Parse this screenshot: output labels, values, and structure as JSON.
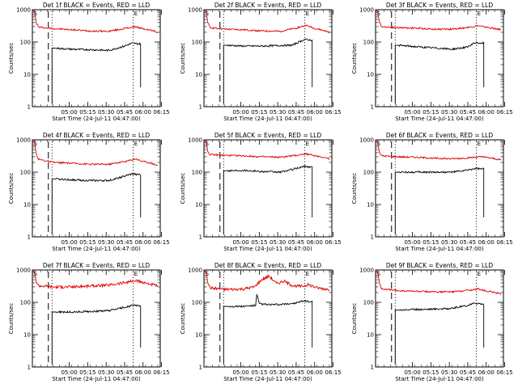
{
  "figure": {
    "x_axis_title": "Start Time (24-Jul-11 04:47:00)",
    "y_axis_title": "Counts/sec",
    "panel_mark_start": "S",
    "panel_mark_end": "E"
  },
  "chart_data": {
    "type": "line",
    "scale_y": "log",
    "ylim": [
      1,
      1000
    ],
    "y_ticks": [
      1,
      10,
      100,
      1000
    ],
    "y_tick_labels": [
      "1",
      "10",
      "100",
      "1000"
    ],
    "xlim_minutes": [
      -17,
      87
    ],
    "x_ticks_minutes": [
      13,
      28,
      43,
      58,
      73,
      88
    ],
    "x_tick_labels": [
      "05:00",
      "05:15",
      "05:30",
      "05:45",
      "06:00",
      "06:15"
    ],
    "grid": false,
    "legend": "none (series identified in title text)",
    "series_colors": {
      "events": "#000000",
      "lld": "#e00000"
    },
    "panels": [
      {
        "title": "Det 1f BLACK = Events, RED = LLD",
        "dashed_line_minutes": -4,
        "dotted_lines_minutes": [
          -1,
          65
        ],
        "series": [
          {
            "name": "LLD",
            "color": "#e00000",
            "start": -17,
            "end": 85,
            "knots": [
              [
                -17,
                1000
              ],
              [
                -15,
                850
              ],
              [
                -14,
                400
              ],
              [
                -12,
                290
              ],
              [
                0,
                260
              ],
              [
                15,
                240
              ],
              [
                30,
                220
              ],
              [
                45,
                215
              ],
              [
                60,
                270
              ],
              [
                67,
                300
              ],
              [
                72,
                260
              ],
              [
                80,
                230
              ],
              [
                85,
                200
              ]
            ]
          },
          {
            "name": "Events",
            "color": "#000000",
            "start": -1,
            "end": 71,
            "knots": [
              [
                0,
                65
              ],
              [
                15,
                60
              ],
              [
                30,
                58
              ],
              [
                45,
                55
              ],
              [
                58,
                75
              ],
              [
                64,
                92
              ],
              [
                70,
                88
              ]
            ]
          }
        ]
      },
      {
        "title": "Det 2f BLACK = Events, RED = LLD",
        "dashed_line_minutes": -4,
        "dotted_lines_minutes": [
          -1,
          65
        ],
        "series": [
          {
            "name": "LLD",
            "color": "#e00000",
            "start": -17,
            "end": 85,
            "knots": [
              [
                -17,
                1000
              ],
              [
                -15,
                820
              ],
              [
                -14,
                400
              ],
              [
                -12,
                280
              ],
              [
                0,
                250
              ],
              [
                15,
                240
              ],
              [
                30,
                220
              ],
              [
                45,
                215
              ],
              [
                58,
                270
              ],
              [
                66,
                330
              ],
              [
                72,
                270
              ],
              [
                80,
                230
              ],
              [
                85,
                200
              ]
            ]
          },
          {
            "name": "Events",
            "color": "#000000",
            "start": -1,
            "end": 71,
            "knots": [
              [
                0,
                80
              ],
              [
                15,
                75
              ],
              [
                30,
                75
              ],
              [
                45,
                78
              ],
              [
                55,
                80
              ],
              [
                60,
                100
              ],
              [
                65,
                120
              ],
              [
                70,
                115
              ]
            ]
          }
        ]
      },
      {
        "title": "Det 3f BLACK = Events, RED = LLD",
        "dashed_line_minutes": -4,
        "dotted_lines_minutes": [
          -1,
          65
        ],
        "series": [
          {
            "name": "LLD",
            "color": "#e00000",
            "start": -17,
            "end": 85,
            "knots": [
              [
                -17,
                1000
              ],
              [
                -15,
                820
              ],
              [
                -14,
                420
              ],
              [
                -12,
                300
              ],
              [
                0,
                280
              ],
              [
                15,
                270
              ],
              [
                30,
                250
              ],
              [
                45,
                250
              ],
              [
                60,
                290
              ],
              [
                66,
                320
              ],
              [
                72,
                290
              ],
              [
                80,
                260
              ],
              [
                85,
                240
              ]
            ]
          },
          {
            "name": "Events",
            "color": "#000000",
            "start": -1,
            "end": 71,
            "knots": [
              [
                0,
                80
              ],
              [
                15,
                72
              ],
              [
                30,
                66
              ],
              [
                45,
                60
              ],
              [
                58,
                70
              ],
              [
                64,
                95
              ],
              [
                70,
                92
              ]
            ]
          }
        ]
      },
      {
        "title": "Det 4f BLACK = Events, RED = LLD",
        "dashed_line_minutes": -4,
        "dotted_lines_minutes": [
          -1,
          65
        ],
        "series": [
          {
            "name": "LLD",
            "color": "#e00000",
            "start": -17,
            "end": 85,
            "knots": [
              [
                -17,
                1000
              ],
              [
                -15,
                800
              ],
              [
                -14,
                380
              ],
              [
                -12,
                250
              ],
              [
                0,
                200
              ],
              [
                15,
                190
              ],
              [
                30,
                175
              ],
              [
                45,
                175
              ],
              [
                60,
                220
              ],
              [
                67,
                260
              ],
              [
                72,
                220
              ],
              [
                80,
                190
              ],
              [
                85,
                160
              ]
            ]
          },
          {
            "name": "Events",
            "color": "#000000",
            "start": -1,
            "end": 71,
            "knots": [
              [
                0,
                62
              ],
              [
                15,
                58
              ],
              [
                30,
                55
              ],
              [
                45,
                55
              ],
              [
                58,
                75
              ],
              [
                64,
                88
              ],
              [
                70,
                84
              ]
            ]
          }
        ]
      },
      {
        "title": "Det 5f BLACK = Events, RED = LLD",
        "dashed_line_minutes": -4,
        "dotted_lines_minutes": [
          -1,
          65
        ],
        "series": [
          {
            "name": "LLD",
            "color": "#e00000",
            "start": -17,
            "end": 85,
            "knots": [
              [
                -17,
                1000
              ],
              [
                -15,
                840
              ],
              [
                -14,
                440
              ],
              [
                -12,
                350
              ],
              [
                0,
                330
              ],
              [
                15,
                320
              ],
              [
                30,
                300
              ],
              [
                45,
                290
              ],
              [
                58,
                330
              ],
              [
                66,
                370
              ],
              [
                72,
                330
              ],
              [
                80,
                290
              ],
              [
                85,
                260
              ]
            ]
          },
          {
            "name": "Events",
            "color": "#000000",
            "start": -1,
            "end": 71,
            "knots": [
              [
                0,
                110
              ],
              [
                15,
                115
              ],
              [
                30,
                105
              ],
              [
                45,
                100
              ],
              [
                58,
                130
              ],
              [
                64,
                150
              ],
              [
                70,
                145
              ]
            ]
          }
        ]
      },
      {
        "title": "Det 6f BLACK = Events, RED = LLD",
        "dashed_line_minutes": -4,
        "dotted_lines_minutes": [
          -1,
          65
        ],
        "series": [
          {
            "name": "LLD",
            "color": "#e00000",
            "start": -17,
            "end": 85,
            "knots": [
              [
                -17,
                1000
              ],
              [
                -15,
                820
              ],
              [
                -14,
                420
              ],
              [
                -12,
                320
              ],
              [
                0,
                300
              ],
              [
                15,
                290
              ],
              [
                30,
                270
              ],
              [
                45,
                260
              ],
              [
                60,
                280
              ],
              [
                67,
                300
              ],
              [
                72,
                290
              ],
              [
                80,
                260
              ],
              [
                85,
                240
              ]
            ]
          },
          {
            "name": "Events",
            "color": "#000000",
            "start": -1,
            "end": 71,
            "knots": [
              [
                0,
                100
              ],
              [
                15,
                100
              ],
              [
                30,
                100
              ],
              [
                45,
                100
              ],
              [
                58,
                115
              ],
              [
                64,
                130
              ],
              [
                70,
                125
              ]
            ]
          }
        ]
      },
      {
        "title": "Det 7f BLACK = Events, RED = LLD",
        "dashed_line_minutes": -4,
        "dotted_lines_minutes": [
          -1,
          65
        ],
        "series": [
          {
            "name": "LLD",
            "color": "#e00000",
            "start": -17,
            "end": 85,
            "knots": [
              [
                -17,
                1000
              ],
              [
                -15,
                820
              ],
              [
                -14,
                450
              ],
              [
                -12,
                330
              ],
              [
                0,
                300
              ],
              [
                15,
                300
              ],
              [
                30,
                320
              ],
              [
                45,
                340
              ],
              [
                60,
                420
              ],
              [
                67,
                460
              ],
              [
                72,
                420
              ],
              [
                80,
                360
              ],
              [
                85,
                320
              ]
            ]
          },
          {
            "name": "Events",
            "color": "#000000",
            "start": -1,
            "end": 71,
            "knots": [
              [
                0,
                50
              ],
              [
                15,
                50
              ],
              [
                30,
                52
              ],
              [
                45,
                55
              ],
              [
                58,
                70
              ],
              [
                64,
                80
              ],
              [
                70,
                78
              ]
            ]
          }
        ]
      },
      {
        "title": "Det 8f BLACK = Events, RED = LLD",
        "dashed_line_minutes": -4,
        "dotted_lines_minutes": [
          -1,
          65
        ],
        "series": [
          {
            "name": "LLD",
            "color": "#e00000",
            "start": -17,
            "end": 85,
            "knots": [
              [
                -17,
                1000
              ],
              [
                -15,
                820
              ],
              [
                -14,
                420
              ],
              [
                -12,
                280
              ],
              [
                0,
                250
              ],
              [
                15,
                260
              ],
              [
                24,
                300
              ],
              [
                30,
                500
              ],
              [
                36,
                650
              ],
              [
                42,
                380
              ],
              [
                48,
                450
              ],
              [
                55,
                330
              ],
              [
                62,
                310
              ],
              [
                68,
                350
              ],
              [
                75,
                280
              ],
              [
                85,
                250
              ]
            ]
          },
          {
            "name": "Events",
            "color": "#000000",
            "start": -1,
            "end": 71,
            "knots": [
              [
                0,
                75
              ],
              [
                15,
                75
              ],
              [
                25,
                80
              ],
              [
                26,
                175
              ],
              [
                28,
                90
              ],
              [
                35,
                85
              ],
              [
                45,
                85
              ],
              [
                58,
                95
              ],
              [
                64,
                110
              ],
              [
                70,
                105
              ]
            ]
          }
        ]
      },
      {
        "title": "Det 9f BLACK = Events, RED = LLD",
        "dashed_line_minutes": -4,
        "dotted_lines_minutes": [
          -1,
          65
        ],
        "series": [
          {
            "name": "LLD",
            "color": "#e00000",
            "start": -17,
            "end": 85,
            "knots": [
              [
                -17,
                1000
              ],
              [
                -15,
                820
              ],
              [
                -14,
                420
              ],
              [
                -12,
                260
              ],
              [
                0,
                230
              ],
              [
                15,
                220
              ],
              [
                30,
                210
              ],
              [
                45,
                210
              ],
              [
                60,
                240
              ],
              [
                67,
                260
              ],
              [
                72,
                230
              ],
              [
                80,
                200
              ],
              [
                85,
                180
              ]
            ]
          },
          {
            "name": "Events",
            "color": "#000000",
            "start": -1,
            "end": 71,
            "knots": [
              [
                0,
                58
              ],
              [
                15,
                60
              ],
              [
                30,
                62
              ],
              [
                45,
                65
              ],
              [
                58,
                80
              ],
              [
                64,
                95
              ],
              [
                70,
                88
              ]
            ]
          }
        ]
      }
    ]
  }
}
